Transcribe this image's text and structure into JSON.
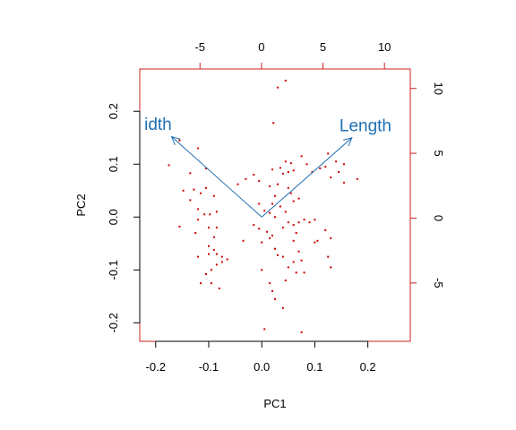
{
  "chart_data": {
    "type": "scatter",
    "title": "",
    "xlabel": "PC1",
    "ylabel": "PC2",
    "xlim": [
      -0.23,
      0.28
    ],
    "ylim": [
      -0.235,
      0.28
    ],
    "x_ticks": [
      -0.2,
      -0.1,
      0.0,
      0.1,
      0.2
    ],
    "x_tick_labels": [
      "-0.2",
      "-0.1",
      "0.0",
      "0.1",
      "0.2"
    ],
    "y_ticks": [
      -0.2,
      -0.1,
      0.0,
      0.1,
      0.2
    ],
    "y_tick_labels": [
      "-0.2",
      "-0.1",
      "0.0",
      "0.1",
      "0.2"
    ],
    "top_ticks": [
      -5,
      0,
      5,
      10
    ],
    "top_tick_labels": [
      "-5",
      "0",
      "5",
      "10"
    ],
    "right_ticks": [
      -5,
      0,
      5,
      10
    ],
    "right_tick_labels": [
      "-5",
      "0",
      "5",
      "10"
    ],
    "secondary_xlim": [
      -9.9,
      12.1
    ],
    "secondary_ylim": [
      -9.5,
      11.5
    ],
    "point_color": "#cc0000",
    "arrow_color": "#1f6fb4",
    "frame_color": "#cc2222",
    "grid": false,
    "arrows": [
      {
        "label": "idth",
        "x_end": -0.17,
        "y_end": 0.152
      },
      {
        "label": "Length",
        "x_end": 0.17,
        "y_end": 0.15
      }
    ],
    "points": [
      [
        0.045,
        0.258
      ],
      [
        0.03,
        0.245
      ],
      [
        0.022,
        0.178
      ],
      [
        -0.175,
        0.098
      ],
      [
        -0.155,
        0.145
      ],
      [
        -0.12,
        0.13
      ],
      [
        -0.105,
        0.092
      ],
      [
        -0.135,
        0.083
      ],
      [
        -0.148,
        0.05
      ],
      [
        -0.128,
        0.052
      ],
      [
        -0.115,
        0.045
      ],
      [
        -0.105,
        0.055
      ],
      [
        -0.135,
        0.032
      ],
      [
        -0.09,
        0.04
      ],
      [
        -0.12,
        0.015
      ],
      [
        -0.098,
        0.005
      ],
      [
        -0.108,
        0.005
      ],
      [
        -0.085,
        0.01
      ],
      [
        -0.155,
        -0.018
      ],
      [
        -0.12,
        -0.005
      ],
      [
        -0.1,
        -0.02
      ],
      [
        -0.085,
        -0.02
      ],
      [
        -0.125,
        -0.03
      ],
      [
        -0.09,
        -0.038
      ],
      [
        -0.1,
        -0.055
      ],
      [
        -0.09,
        -0.062
      ],
      [
        -0.1,
        -0.07
      ],
      [
        -0.12,
        -0.075
      ],
      [
        -0.085,
        -0.07
      ],
      [
        -0.075,
        -0.075
      ],
      [
        -0.065,
        -0.08
      ],
      [
        -0.075,
        -0.085
      ],
      [
        -0.085,
        -0.09
      ],
      [
        -0.095,
        -0.1
      ],
      [
        -0.105,
        -0.108
      ],
      [
        -0.115,
        -0.125
      ],
      [
        -0.095,
        -0.125
      ],
      [
        -0.08,
        -0.135
      ],
      [
        -0.045,
        0.062
      ],
      [
        -0.03,
        0.072
      ],
      [
        -0.015,
        0.08
      ],
      [
        -0.005,
        0.068
      ],
      [
        0.015,
        0.058
      ],
      [
        0.02,
        0.09
      ],
      [
        0.035,
        0.093
      ],
      [
        0.045,
        0.105
      ],
      [
        0.055,
        0.102
      ],
      [
        0.05,
        0.085
      ],
      [
        0.04,
        0.082
      ],
      [
        0.06,
        0.088
      ],
      [
        0.075,
        0.115
      ],
      [
        0.085,
        0.1
      ],
      [
        0.095,
        0.085
      ],
      [
        0.11,
        0.092
      ],
      [
        0.125,
        0.12
      ],
      [
        0.14,
        0.105
      ],
      [
        0.155,
        0.1
      ],
      [
        0.145,
        0.085
      ],
      [
        0.13,
        0.075
      ],
      [
        0.155,
        0.065
      ],
      [
        0.18,
        0.072
      ],
      [
        0.12,
        0.095
      ],
      [
        0.03,
        0.062
      ],
      [
        0.05,
        0.055
      ],
      [
        0.055,
        0.045
      ],
      [
        0.025,
        0.04
      ],
      [
        0.06,
        0.03
      ],
      [
        0.07,
        0.035
      ],
      [
        0.02,
        0.025
      ],
      [
        0.035,
        0.02
      ],
      [
        0.045,
        0.01
      ],
      [
        0.025,
        0.0
      ],
      [
        0.005,
        0.012
      ],
      [
        0.015,
        0.008
      ],
      [
        -0.005,
        0.025
      ],
      [
        -0.015,
        -0.015
      ],
      [
        -0.005,
        -0.022
      ],
      [
        0.01,
        -0.028
      ],
      [
        0.02,
        -0.035
      ],
      [
        0.04,
        -0.02
      ],
      [
        0.05,
        -0.01
      ],
      [
        0.06,
        -0.015
      ],
      [
        0.07,
        -0.01
      ],
      [
        0.08,
        -0.005
      ],
      [
        0.09,
        -0.01
      ],
      [
        0.1,
        -0.005
      ],
      [
        0.105,
        -0.045
      ],
      [
        0.12,
        -0.025
      ],
      [
        0.13,
        -0.04
      ],
      [
        0.1,
        -0.048
      ],
      [
        0.125,
        -0.075
      ],
      [
        0.13,
        -0.095
      ],
      [
        0.06,
        -0.045
      ],
      [
        0.07,
        -0.065
      ],
      [
        0.075,
        -0.082
      ],
      [
        0.06,
        -0.085
      ],
      [
        0.05,
        -0.095
      ],
      [
        0.065,
        -0.105
      ],
      [
        0.04,
        -0.075
      ],
      [
        0.03,
        -0.072
      ],
      [
        0.025,
        -0.06
      ],
      [
        0.015,
        -0.04
      ],
      [
        -0.035,
        -0.045
      ],
      [
        0.0,
        -0.048
      ],
      [
        0.0,
        -0.1
      ],
      [
        0.02,
        -0.14
      ],
      [
        0.015,
        -0.125
      ],
      [
        0.025,
        -0.155
      ],
      [
        0.04,
        -0.172
      ],
      [
        0.005,
        -0.212
      ],
      [
        0.075,
        -0.218
      ],
      [
        0.045,
        -0.12
      ],
      [
        0.08,
        -0.105
      ],
      [
        0.065,
        -0.03
      ]
    ]
  }
}
